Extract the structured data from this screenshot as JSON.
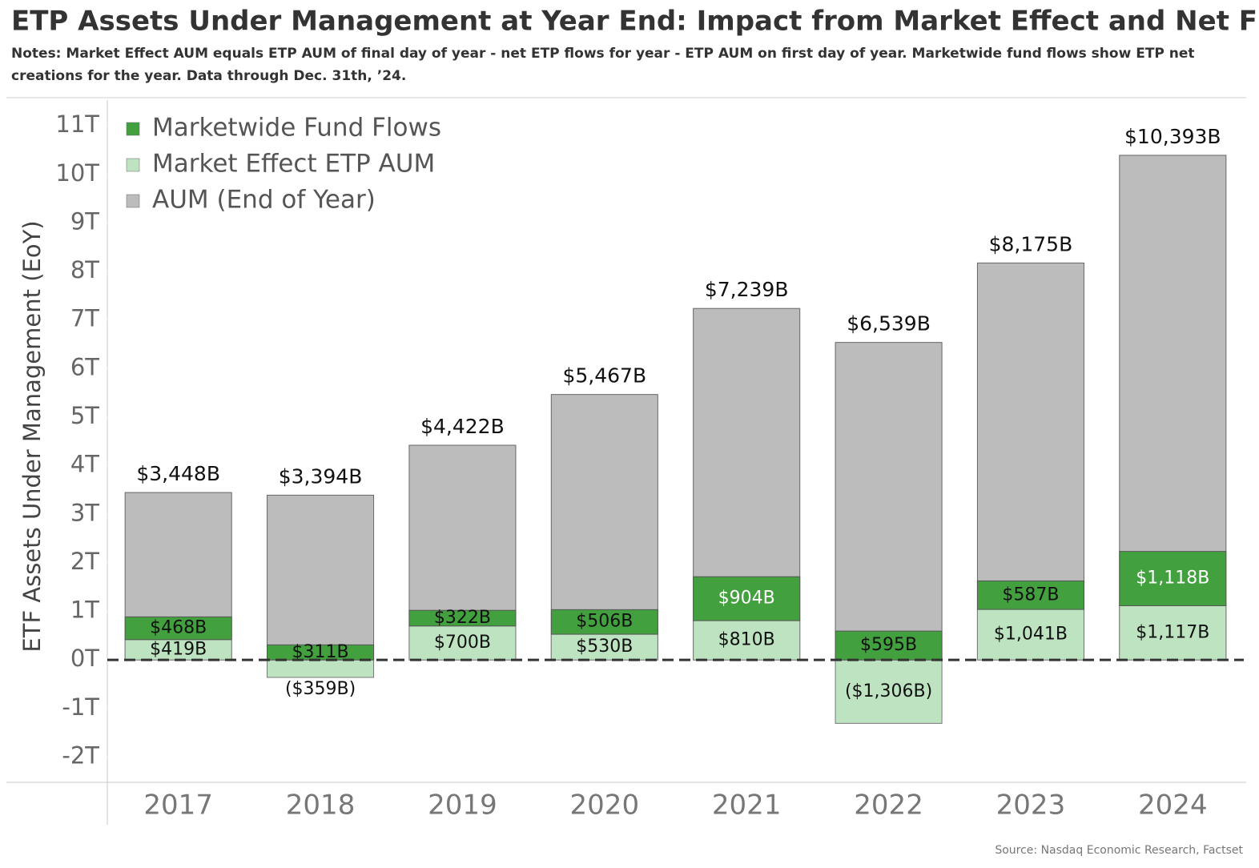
{
  "chart_data": {
    "type": "bar",
    "title": "ETP Assets Under Management at Year End: Impact from Market Effect and Net Flows",
    "notes": [
      "Notes: Market Effect AUM equals ETP AUM of final day of year - net ETP flows for year - ETP AUM on first day of year. Marketwide fund flows show ETP net",
      "creations for the year. Data through Dec. 31th, ’24."
    ],
    "y_label": "ETF Assets Under Management (EoY)",
    "source": "Source: Nasdaq Economic Research, Factset",
    "categories": [
      "2017",
      "2018",
      "2019",
      "2020",
      "2021",
      "2022",
      "2023",
      "2024"
    ],
    "series": [
      {
        "name": "Marketwide Fund Flows",
        "color": "#43a03e",
        "values": [
          0.468,
          0.311,
          0.322,
          0.506,
          0.904,
          0.595,
          0.587,
          1.118
        ],
        "value_labels": [
          "$468B",
          "$311B",
          "$322B",
          "$506B",
          "$904B",
          "$595B",
          "$587B",
          "$1,118B"
        ]
      },
      {
        "name": "Market Effect ETP AUM",
        "color": "#bde3c0",
        "values": [
          0.419,
          -0.359,
          0.7,
          0.53,
          0.81,
          -1.306,
          1.041,
          1.117
        ],
        "value_labels": [
          "$419B",
          "($359B)",
          "$700B",
          "$530B",
          "$810B",
          "($1,306B)",
          "$1,041B",
          "$1,117B"
        ]
      },
      {
        "name": "AUM (End of Year)",
        "color": "#bcbcbc",
        "values": [
          3.448,
          3.394,
          4.422,
          5.467,
          7.239,
          6.539,
          8.175,
          10.393
        ],
        "value_labels": [
          "$3,448B",
          "$3,394B",
          "$4,422B",
          "$5,467B",
          "$7,239B",
          "$6,539B",
          "$8,175B",
          "$10,393B"
        ]
      }
    ],
    "ylim": [
      -2.52,
      11.53
    ],
    "yticks": [
      {
        "value": -2,
        "label": "-2T"
      },
      {
        "value": -1,
        "label": "-1T"
      },
      {
        "value": 0,
        "label": "0T"
      },
      {
        "value": 1,
        "label": "1T"
      },
      {
        "value": 2,
        "label": "2T"
      },
      {
        "value": 3,
        "label": "3T"
      },
      {
        "value": 4,
        "label": "4T"
      },
      {
        "value": 5,
        "label": "5T"
      },
      {
        "value": 6,
        "label": "6T"
      },
      {
        "value": 7,
        "label": "7T"
      },
      {
        "value": 8,
        "label": "8T"
      },
      {
        "value": 9,
        "label": "9T"
      },
      {
        "value": 10,
        "label": "10T"
      },
      {
        "value": 11,
        "label": "11T"
      }
    ],
    "legend": "top-left"
  }
}
